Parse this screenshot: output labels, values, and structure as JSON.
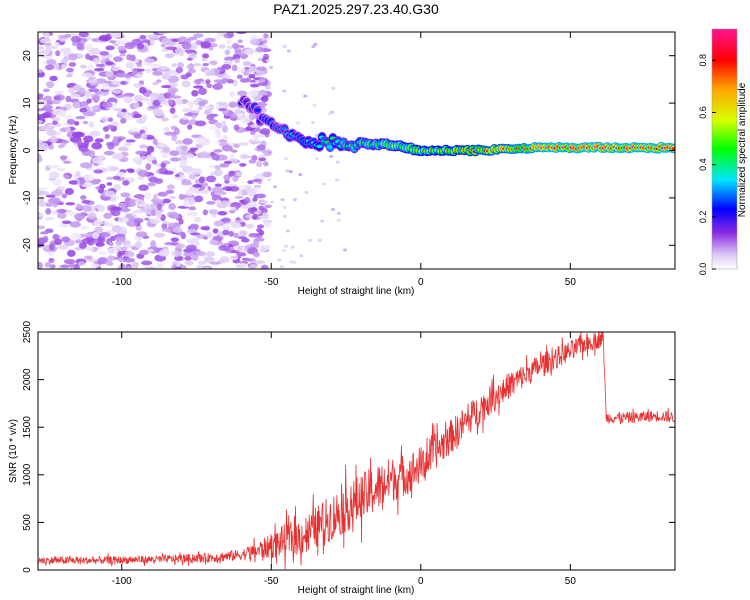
{
  "title": "PAZ1.2025.297.23.40.G30",
  "colors": {
    "snr_line": "#e83030",
    "axis": "#000000",
    "background": "#ffffff"
  },
  "chart_data": [
    {
      "type": "heatmap",
      "name": "spectrogram",
      "xlabel": "Height of straight line (km)",
      "ylabel": "Frequency (Hz)",
      "xlim": [
        -128,
        85
      ],
      "ylim": [
        -25,
        25
      ],
      "xticks": [
        -100,
        -50,
        0,
        50
      ],
      "yticks": [
        -20,
        -10,
        0,
        10,
        20
      ],
      "xtick_labels": [
        "-100",
        "-50",
        "0",
        "50"
      ],
      "ytick_labels": [
        "-20",
        "-10",
        "0",
        "10",
        "20"
      ],
      "colorbar": {
        "label": "Normalized spectral amplitude",
        "range": [
          0.0,
          0.92
        ],
        "ticks": [
          0.0,
          0.2,
          0.4,
          0.6,
          0.8
        ],
        "tick_labels": [
          "0.0",
          "0.2",
          "0.4",
          "0.6",
          "0.8"
        ]
      },
      "features": [
        {
          "description": "broadband noise",
          "x_range": [
            -128,
            -55
          ],
          "f_range": [
            -25,
            25
          ],
          "amplitude": 0.05
        },
        {
          "description": "descending tone",
          "points": [
            [
              -60,
              11
            ],
            [
              -50,
              5
            ],
            [
              -40,
              2
            ],
            [
              -30,
              1.8
            ],
            [
              -20,
              1.5
            ],
            [
              -10,
              1.2
            ],
            [
              0,
              0
            ],
            [
              20,
              0
            ],
            [
              40,
              0.6
            ],
            [
              85,
              0.6
            ]
          ],
          "amplitude_range": [
            0.2,
            0.9
          ]
        }
      ]
    },
    {
      "type": "line",
      "name": "snr",
      "xlabel": "Height of straight line (km)",
      "ylabel": "SNR (10 * v/v)",
      "xlim": [
        -128,
        85
      ],
      "ylim": [
        0,
        2500
      ],
      "xticks": [
        -100,
        -50,
        0,
        50
      ],
      "yticks": [
        0,
        500,
        1000,
        1500,
        2000,
        2500
      ],
      "xtick_labels": [
        "-100",
        "-50",
        "0",
        "50"
      ],
      "ytick_labels": [
        "0",
        "500",
        "1000",
        "1500",
        "2000",
        "2500"
      ],
      "series": [
        {
          "name": "SNR",
          "x": [
            -128,
            -110,
            -90,
            -70,
            -60,
            -55,
            -50,
            -45,
            -40,
            -35,
            -30,
            -25,
            -20,
            -15,
            -10,
            -5,
            0,
            5,
            10,
            20,
            30,
            40,
            50,
            55,
            60,
            61,
            62,
            70,
            80,
            85
          ],
          "y": [
            100,
            100,
            110,
            130,
            160,
            200,
            250,
            320,
            350,
            450,
            550,
            650,
            750,
            850,
            950,
            1000,
            1100,
            1250,
            1400,
            1700,
            1950,
            2150,
            2300,
            2380,
            2420,
            2450,
            1600,
            1600,
            1620,
            1600
          ],
          "noise_amplitude": [
            40,
            40,
            40,
            50,
            60,
            90,
            130,
            180,
            200,
            220,
            250,
            260,
            260,
            260,
            240,
            220,
            200,
            190,
            180,
            160,
            140,
            120,
            110,
            100,
            90,
            60,
            60,
            60,
            60,
            60
          ]
        }
      ]
    }
  ]
}
